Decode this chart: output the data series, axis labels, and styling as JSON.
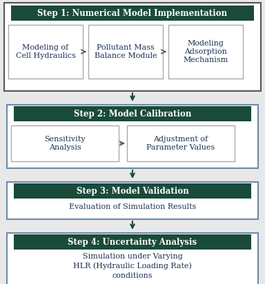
{
  "fig_bg": "#e8e8e8",
  "header_color": "#1a4a3a",
  "header_text_color": "#ffffff",
  "box_text_color": "#1a3055",
  "arrow_color": "#1a4a3a",
  "step1_outer_border": "#555555",
  "step_outer_border": "#6a8aaa",
  "step1_header": "Step 1: Numerical Model Implementation",
  "step1_boxes": [
    "Modeling of\nCell Hydraulics",
    "Pollutant Mass\nBalance Module",
    "Modeling\nAdsorption\nMechanism"
  ],
  "step2_header": "Step 2: Model Calibration",
  "step2_boxes": [
    "Sensitivity\nAnalysis",
    "Adjustment of\nParameter Values"
  ],
  "step3_header": "Step 3: Model Validation",
  "step3_content": "Evaluation of Simulation Results",
  "step4_header": "Step 4: Uncertainty Analysis",
  "step4_content": "Simulation under Varying\nHLR (Hydraulic Loading Rate)\nconditions",
  "header_fontsize": 8.5,
  "body_fontsize": 8.0
}
